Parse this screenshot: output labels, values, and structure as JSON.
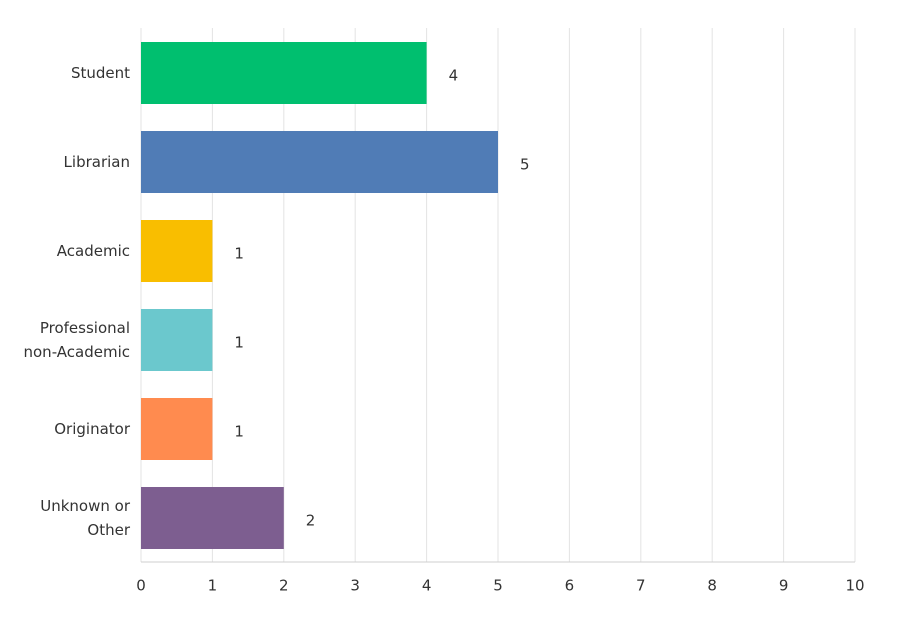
{
  "chart_data": {
    "type": "bar",
    "orientation": "horizontal",
    "categories": [
      "Student",
      "Librarian",
      "Academic",
      "Professional non-Academic",
      "Originator",
      "Unknown or Other"
    ],
    "values": [
      4,
      5,
      1,
      1,
      1,
      2
    ],
    "colors": [
      "#00bf6f",
      "#507cb6",
      "#f9be00",
      "#6bc8cd",
      "#ff8b4f",
      "#7d5e90"
    ],
    "xlim": [
      0,
      10
    ],
    "xticks": [
      0,
      1,
      2,
      3,
      4,
      5,
      6,
      7,
      8,
      9,
      10
    ],
    "grid": true
  }
}
